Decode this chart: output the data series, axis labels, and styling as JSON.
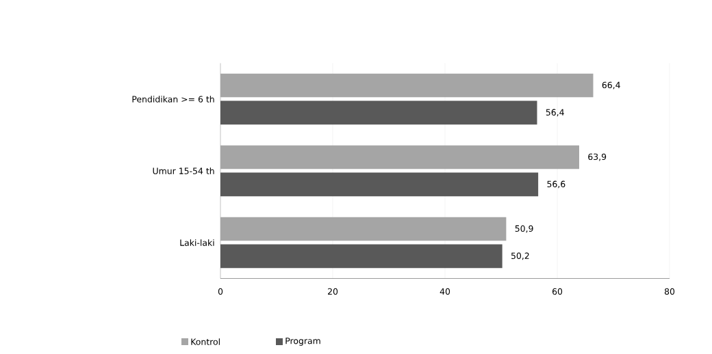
{
  "chart_data": {
    "type": "bar",
    "orientation": "horizontal",
    "categories": [
      "Pendidikan >= 6 th",
      "Umur 15-54 th",
      "Laki-laki"
    ],
    "series": [
      {
        "name": "Kontrol",
        "color": "#a5a5a5",
        "values": [
          66.4,
          63.9,
          50.9
        ],
        "value_labels": [
          "66,4",
          "63,9",
          "50,9"
        ]
      },
      {
        "name": "Program",
        "color": "#595959",
        "values": [
          56.4,
          56.6,
          50.2
        ],
        "value_labels": [
          "56,4",
          "56,6",
          "50,2"
        ]
      }
    ],
    "xlim": [
      0,
      80
    ],
    "xticks": [
      0,
      20,
      40,
      60,
      80
    ],
    "grid": "x",
    "legend": "bottom left"
  }
}
